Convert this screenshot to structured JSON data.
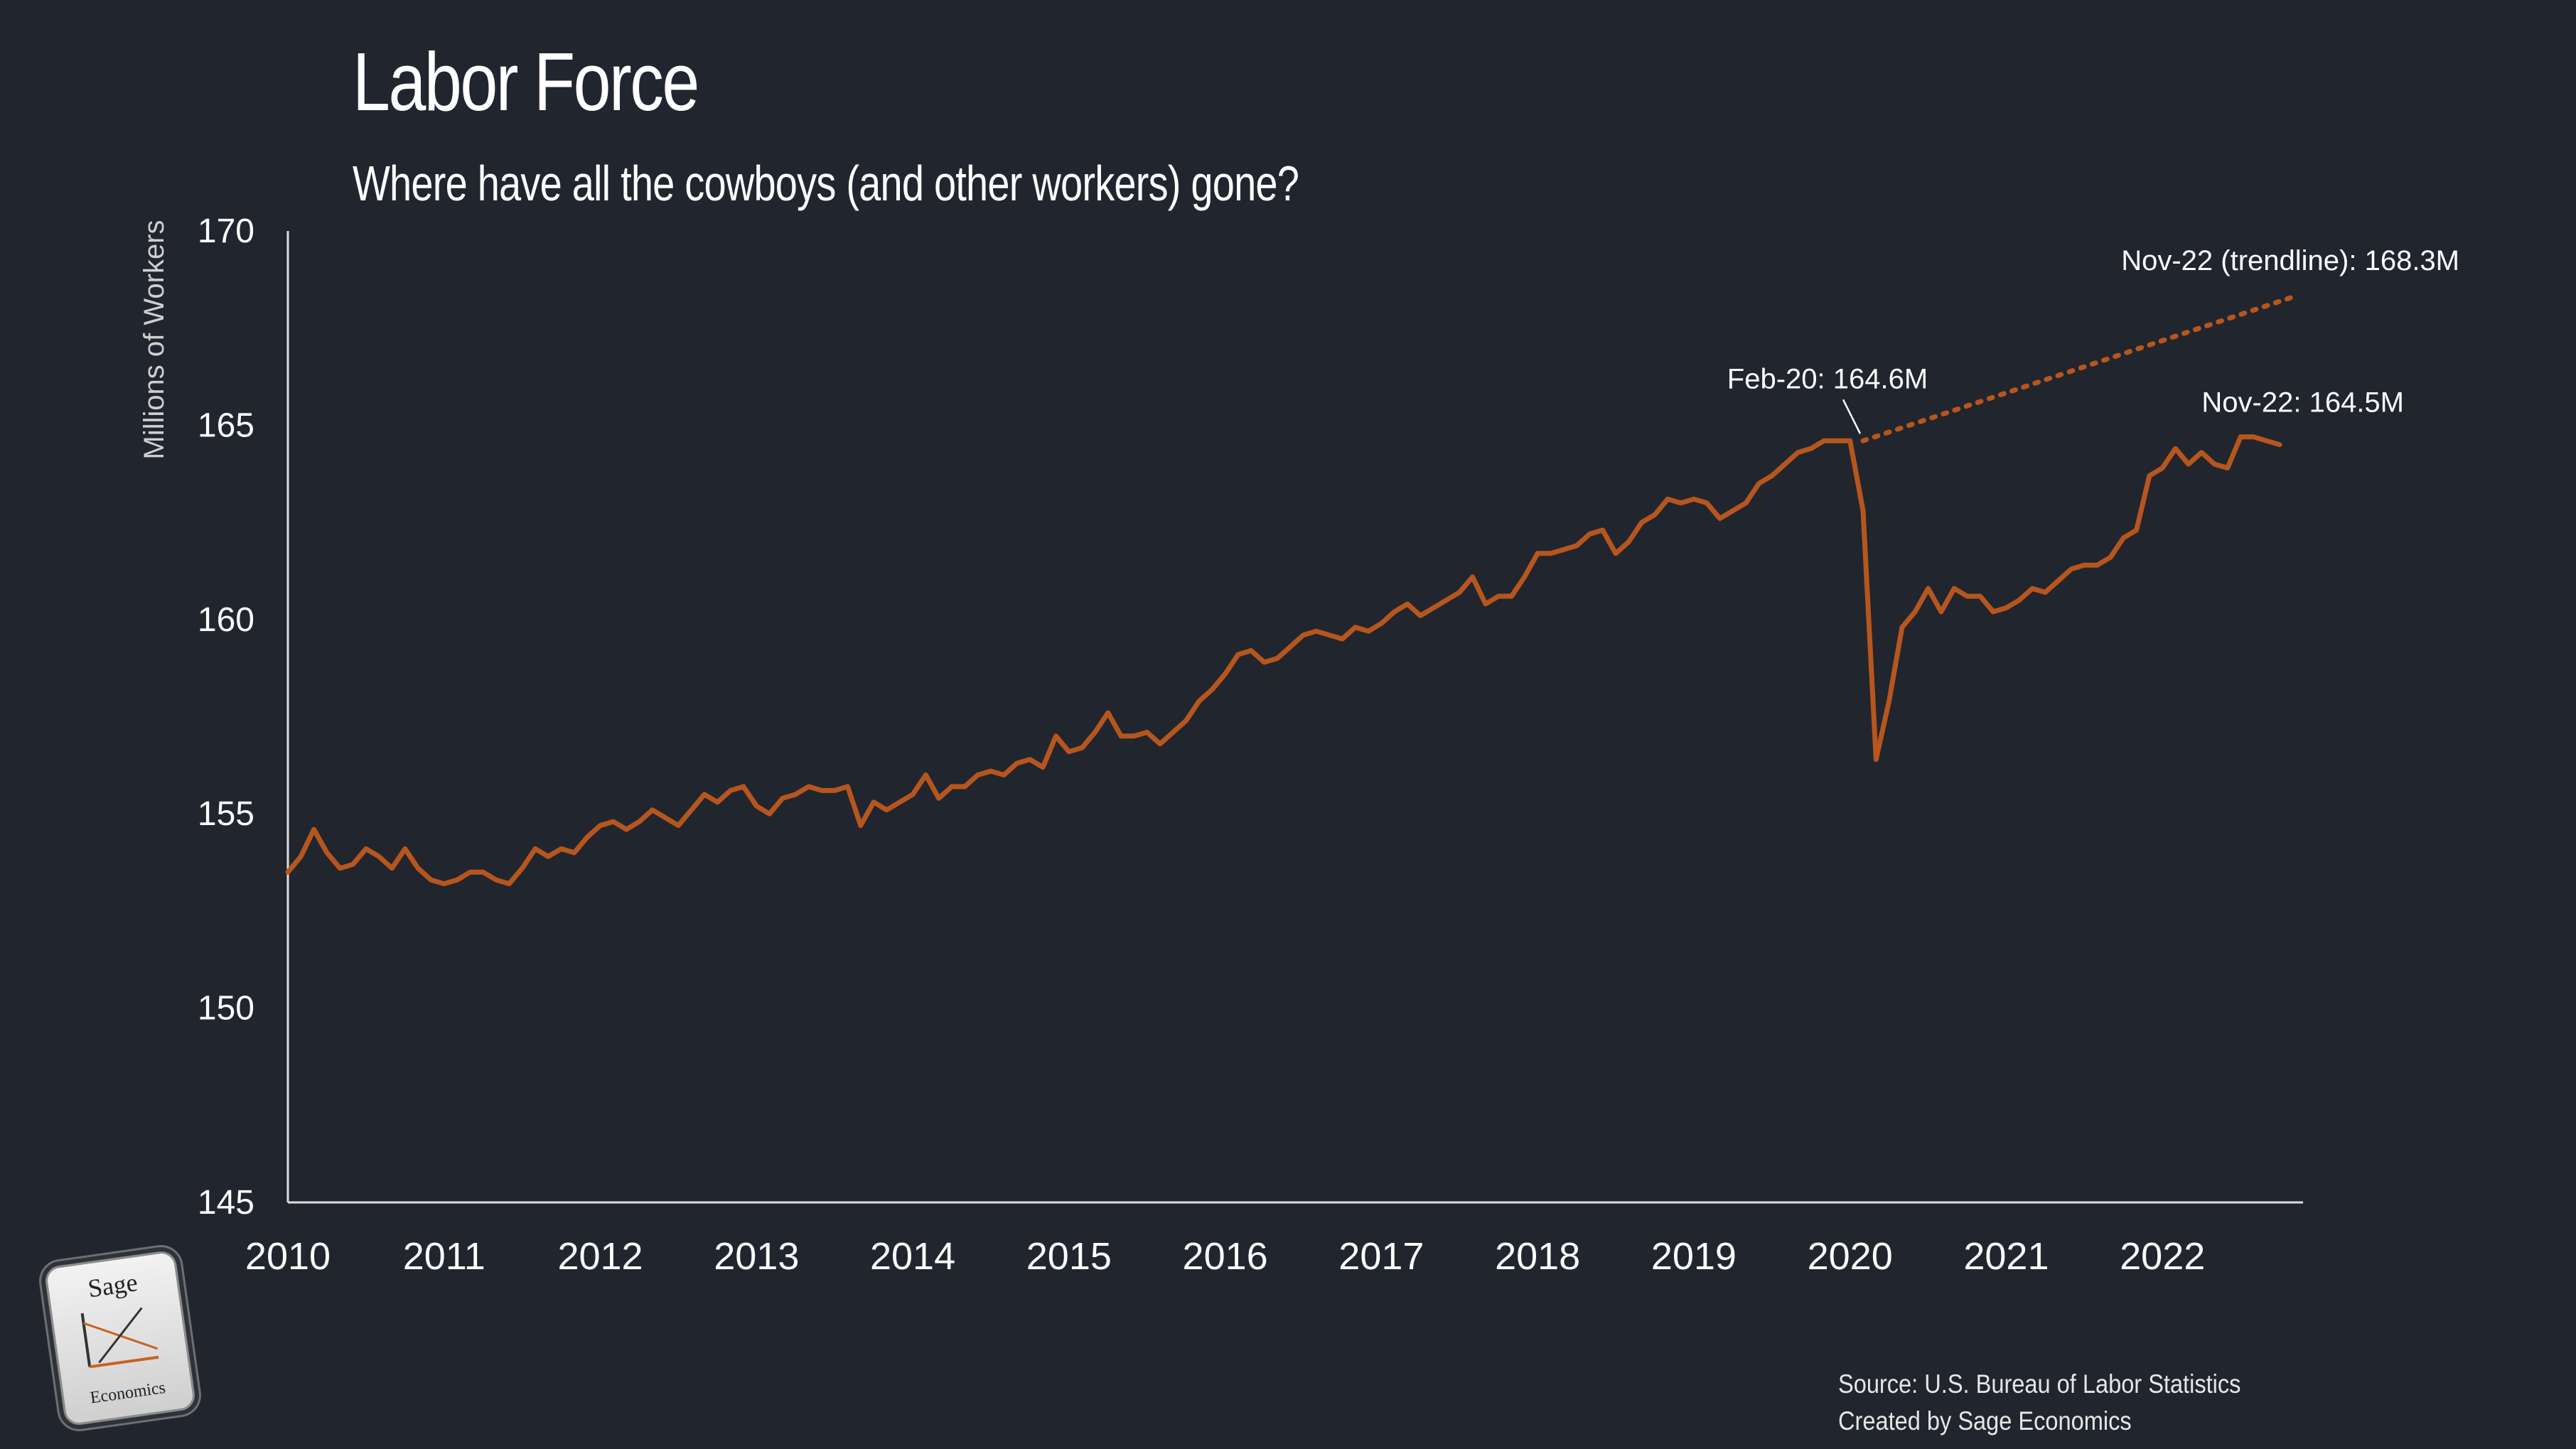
{
  "title": "Labor Force",
  "subtitle": "Where have all the cowboys (and other workers) gone?",
  "source_line": "Source: U.S. Bureau of Labor Statistics",
  "credit_line": "Created by Sage Economics",
  "logo": {
    "top": "Sage",
    "bottom": "Economics"
  },
  "colors": {
    "background": "#21252e",
    "series": "#b6561e",
    "text": "#ffffff",
    "axis": "#dddddd"
  },
  "chart_data": {
    "type": "line",
    "ylabel": "Millions of Workers",
    "xlabel": "",
    "ylim": [
      145,
      170
    ],
    "yticks": [
      145,
      150,
      155,
      160,
      165,
      170
    ],
    "xlim": [
      2010,
      2022.9
    ],
    "xticks": [
      "2010",
      "2011",
      "2012",
      "2013",
      "2014",
      "2015",
      "2016",
      "2017",
      "2018",
      "2019",
      "2020",
      "2021",
      "2022"
    ],
    "grid": false,
    "series": [
      {
        "x_start": "2010-01",
        "interval": "monthly",
        "values": [
          153.5,
          153.9,
          154.6,
          154.0,
          153.6,
          153.7,
          154.1,
          153.9,
          153.6,
          154.1,
          153.6,
          153.3,
          153.2,
          153.3,
          153.5,
          153.5,
          153.3,
          153.2,
          153.6,
          154.1,
          153.9,
          154.1,
          154.0,
          154.4,
          154.7,
          154.8,
          154.6,
          154.8,
          155.1,
          154.9,
          154.7,
          155.1,
          155.5,
          155.3,
          155.6,
          155.7,
          155.2,
          155.0,
          155.4,
          155.5,
          155.7,
          155.6,
          155.6,
          155.7,
          154.7,
          155.3,
          155.1,
          155.3,
          155.5,
          156.0,
          155.4,
          155.7,
          155.7,
          156.0,
          156.1,
          156.0,
          156.3,
          156.4,
          156.2,
          157.0,
          156.6,
          156.7,
          157.1,
          157.6,
          157.0,
          157.0,
          157.1,
          156.8,
          157.1,
          157.4,
          157.9,
          158.2,
          158.6,
          159.1,
          159.2,
          158.9,
          159.0,
          159.3,
          159.6,
          159.7,
          159.6,
          159.5,
          159.8,
          159.7,
          159.9,
          160.2,
          160.4,
          160.1,
          160.3,
          160.5,
          160.7,
          161.1,
          160.4,
          160.6,
          160.6,
          161.1,
          161.7,
          161.7,
          161.8,
          161.9,
          162.2,
          162.3,
          161.7,
          162.0,
          162.5,
          162.7,
          163.1,
          163.0,
          163.1,
          163.0,
          162.6,
          162.8,
          163.0,
          163.5,
          163.7,
          164.0,
          164.3,
          164.4,
          164.6,
          164.6,
          164.6,
          162.8,
          156.4,
          157.9,
          159.8,
          160.2,
          160.8,
          160.2,
          160.8,
          160.6,
          160.6,
          160.2,
          160.3,
          160.5,
          160.8,
          160.7,
          161.0,
          161.3,
          161.4,
          161.4,
          161.6,
          162.1,
          162.3,
          163.7,
          163.9,
          164.4,
          164.0,
          164.3,
          164.0,
          163.9,
          164.7,
          164.7,
          164.6,
          164.5
        ]
      },
      {
        "style": "dotted",
        "x_start": "2020-02",
        "x_end": "2022-11",
        "values": [
          164.6,
          168.3
        ]
      }
    ],
    "annotations": [
      {
        "text": "Feb-20: 164.6M",
        "x": "2020-02",
        "y": 164.6
      },
      {
        "text": "Nov-22 (trendline): 168.3M",
        "x": "2022-11",
        "y": 168.3
      },
      {
        "text": "Nov-22: 164.5M",
        "x": "2022-11",
        "y": 164.5
      }
    ]
  }
}
